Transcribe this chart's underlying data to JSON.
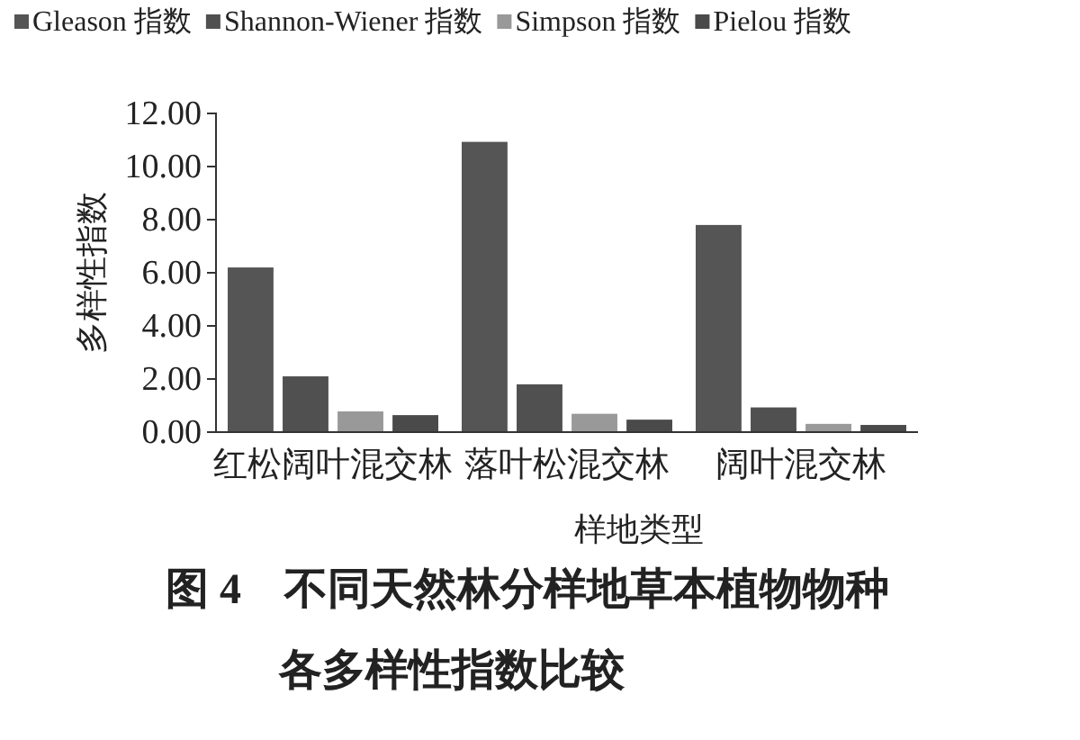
{
  "chart_data": {
    "type": "bar",
    "title": "图 4　不同天然林分样地草本植物物种各多样性指数比较",
    "xlabel": "样地类型",
    "ylabel": "多样性指数",
    "categories": [
      "红松阔叶混交林",
      "落叶松混交林",
      "阔叶混交林"
    ],
    "series": [
      {
        "name": "Gleason 指数",
        "color": "#555555",
        "values": [
          6.2,
          10.93,
          7.8
        ]
      },
      {
        "name": "Shannon-Wiener 指数",
        "color": "#505050",
        "values": [
          2.1,
          1.8,
          0.93
        ]
      },
      {
        "name": "Simpson 指数",
        "color": "#999999",
        "values": [
          0.78,
          0.69,
          0.31
        ]
      },
      {
        "name": "Pielou 指数",
        "color": "#4a4a4a",
        "values": [
          0.64,
          0.47,
          0.27
        ]
      }
    ],
    "ylim": [
      0,
      12
    ],
    "yticks": [
      {
        "value": 0,
        "label": "0.00"
      },
      {
        "value": 2,
        "label": "2.00"
      },
      {
        "value": 4,
        "label": "4.00"
      },
      {
        "value": 6,
        "label": "6.00"
      },
      {
        "value": 8,
        "label": "8.00"
      },
      {
        "value": 10,
        "label": "10.00"
      },
      {
        "value": 12,
        "label": "12.00"
      }
    ],
    "grid": false,
    "legend": "top"
  }
}
